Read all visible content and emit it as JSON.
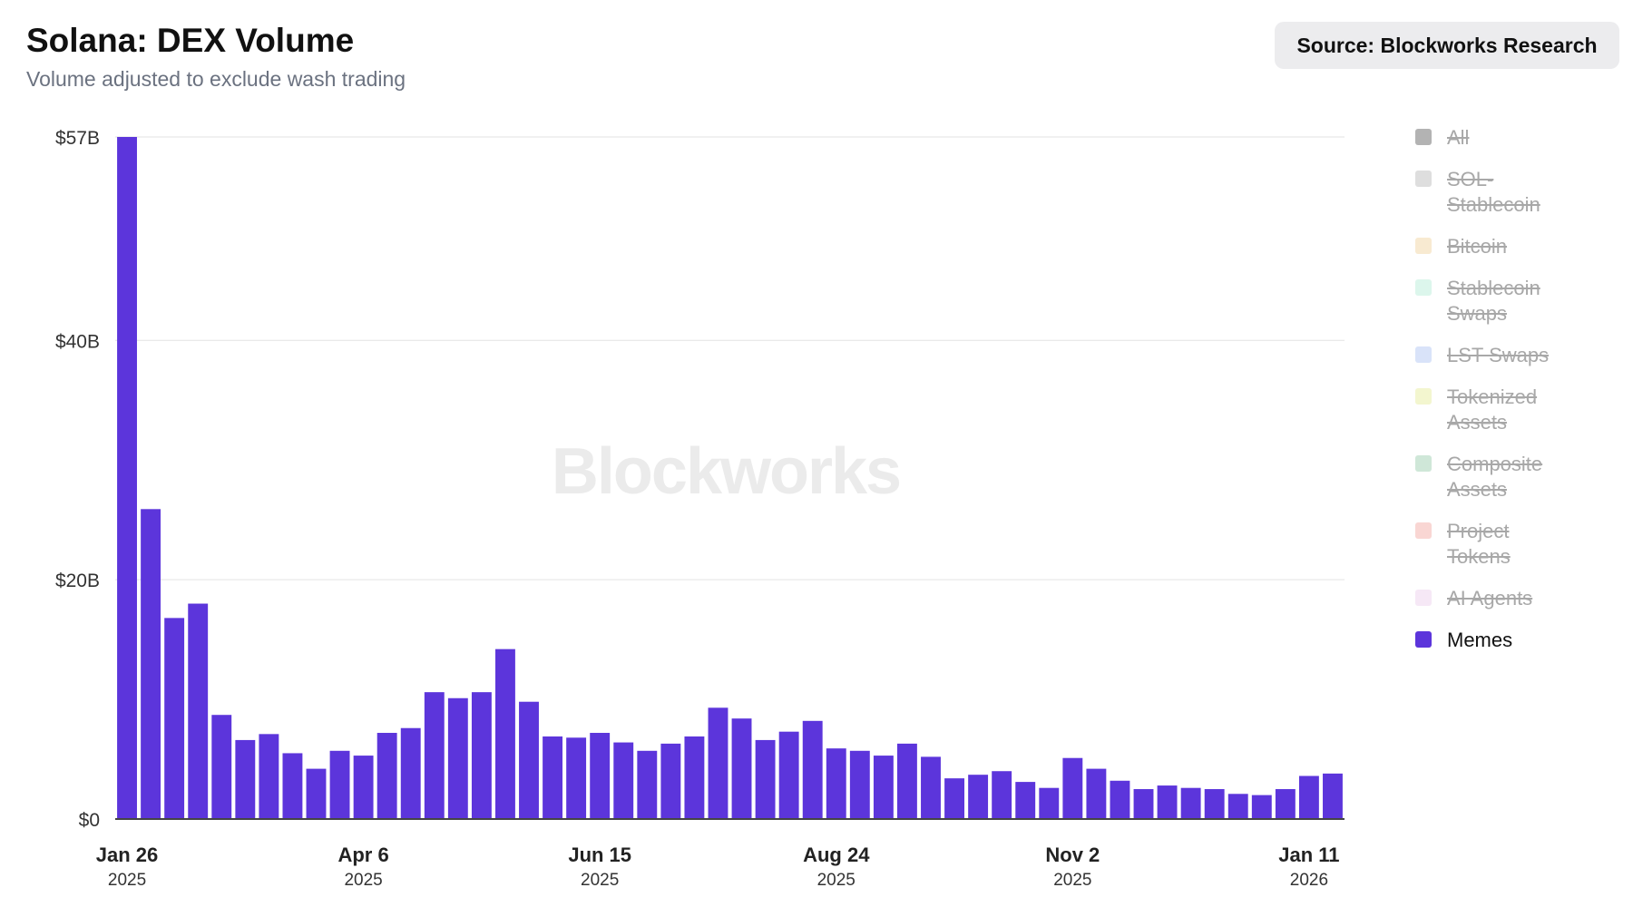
{
  "header": {
    "title": "Solana: DEX Volume",
    "subtitle": "Volume adjusted to exclude wash trading",
    "source": "Source: Blockworks Research"
  },
  "watermark": "Blockworks",
  "legend": [
    {
      "label": "All",
      "color": "#b3b3b3",
      "active": false
    },
    {
      "label": "SOL-Stablecoin",
      "color": "#dedede",
      "active": false
    },
    {
      "label": "Bitcoin",
      "color": "#f8ead1",
      "active": false
    },
    {
      "label": "Stablecoin Swaps",
      "color": "#dcf6ec",
      "active": false
    },
    {
      "label": "LST Swaps",
      "color": "#d9e3f9",
      "active": false
    },
    {
      "label": "Tokenized Assets",
      "color": "#f3f6cf",
      "active": false
    },
    {
      "label": "Composite Assets",
      "color": "#cfe7d8",
      "active": false
    },
    {
      "label": "Project Tokens",
      "color": "#f9d6d3",
      "active": false
    },
    {
      "label": "AI Agents",
      "color": "#f6e8f6",
      "active": false
    },
    {
      "label": "Memes",
      "color": "#5c35db",
      "active": true
    }
  ],
  "chart_data": {
    "type": "bar",
    "title": "Solana: DEX Volume",
    "subtitle": "Volume adjusted to exclude wash trading",
    "series": [
      {
        "name": "Memes",
        "color": "#5c35db",
        "values": [
          57,
          25.9,
          16.8,
          18.0,
          8.7,
          6.6,
          7.1,
          5.5,
          4.2,
          5.7,
          5.3,
          7.2,
          7.6,
          10.6,
          10.1,
          10.6,
          14.2,
          9.8,
          6.9,
          6.8,
          7.2,
          6.4,
          5.7,
          6.3,
          6.9,
          9.3,
          8.4,
          6.6,
          7.3,
          8.2,
          5.9,
          5.7,
          5.3,
          6.3,
          5.2,
          3.4,
          3.7,
          4.0,
          3.1,
          2.6,
          5.1,
          4.2,
          3.2,
          2.5,
          2.8,
          2.6,
          2.5,
          2.1,
          2.0,
          2.5,
          3.6,
          3.8
        ]
      }
    ],
    "x_ticks": [
      {
        "index": 0,
        "label": "Jan 26",
        "year": "2025"
      },
      {
        "index": 10,
        "label": "Apr 6",
        "year": "2025"
      },
      {
        "index": 20,
        "label": "Jun 15",
        "year": "2025"
      },
      {
        "index": 30,
        "label": "Aug 24",
        "year": "2025"
      },
      {
        "index": 40,
        "label": "Nov 2",
        "year": "2025"
      },
      {
        "index": 50,
        "label": "Jan 11",
        "year": "2026"
      }
    ],
    "y_ticks": [
      {
        "value": 0,
        "label": "$0"
      },
      {
        "value": 20,
        "label": "$20B"
      },
      {
        "value": 40,
        "label": "$40B"
      },
      {
        "value": 57,
        "label": "$57B"
      }
    ],
    "ylim": [
      0,
      57
    ],
    "grid": true,
    "legend_position": "right"
  }
}
